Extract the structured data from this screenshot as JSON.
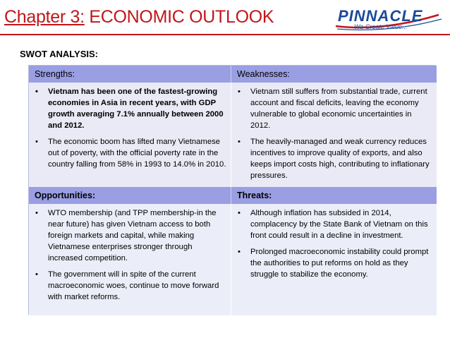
{
  "title": {
    "chapter": "Chapter 3:",
    "text": "ECONOMIC OUTLOOK"
  },
  "logo": {
    "name": "PINNACLE",
    "tagline": "We Create Value..."
  },
  "section_heading": "SWOT ANALYSIS:",
  "swot": {
    "strengths": {
      "label": "Strengths:",
      "items": [
        "Vietnam has been one of the fastest-growing economies in Asia in recent years, with GDP growth averaging 7.1% annually between 2000 and 2012.",
        "The economic boom has lifted many Vietnamese out of poverty, with the official poverty rate in the country falling from 58% in 1993 to 14.0% in 2010."
      ]
    },
    "weaknesses": {
      "label": "Weaknesses:",
      "items": [
        "Vietnam still suffers from substantial trade, current account and fiscal deficits, leaving the economy vulnerable to global economic uncertainties in 2012.",
        "The heavily-managed and weak currency reduces incentives to improve quality of exports, and also keeps import costs high, contributing to inflationary pressures."
      ]
    },
    "opportunities": {
      "label": "Opportunities:",
      "items": [
        "WTO membership (and TPP membership-in the near future) has given Vietnam access to both foreign markets and capital, while making Vietnamese enterprises stronger through increased competition.",
        "The government will in spite of the current macroeconomic woes, continue to move forward with market reforms."
      ]
    },
    "threats": {
      "label": "Threats:",
      "items": [
        "Although inflation has subsided in 2014, complacency by the State Bank of Vietnam on this front could result in a decline in investment.",
        "Prolonged macroeconomic instability could prompt the authorities to put reforms on hold as they struggle to stabilize the economy."
      ]
    }
  },
  "colors": {
    "title": "#c0161b",
    "header_fill": "#9a9ee3",
    "body_fill": "#e9eaf5",
    "logo": "#1a4a9a"
  }
}
